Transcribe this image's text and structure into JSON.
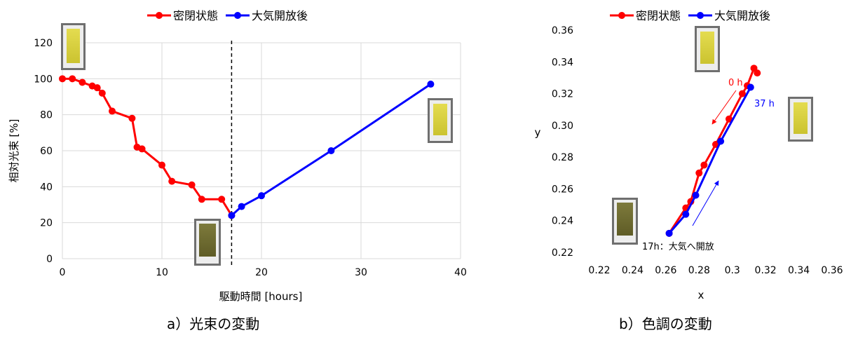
{
  "captions": {
    "a": "a）光束の変動",
    "b": "b）色調の変動"
  },
  "colors": {
    "sealed": "#ff0000",
    "open": "#0000ff"
  },
  "chart_data": [
    {
      "type": "line",
      "xlabel": "駆動時間 [hours]",
      "ylabel": "相対光束 [%]",
      "xlim": [
        0,
        40
      ],
      "ylim": [
        0,
        120
      ],
      "xticks": [
        0,
        10,
        20,
        30,
        40
      ],
      "yticks": [
        0,
        20,
        40,
        60,
        80,
        100,
        120
      ],
      "grid": true,
      "legend": "top-center",
      "series": [
        {
          "name": "密閉状態",
          "color": "#ff0000",
          "x": [
            0,
            1,
            2,
            3,
            3.5,
            4,
            5,
            7,
            7.5,
            8,
            10,
            11,
            13,
            14,
            16,
            17
          ],
          "y": [
            100,
            100,
            98,
            96,
            95,
            92,
            82,
            78,
            62,
            61,
            52,
            43,
            41,
            33,
            33,
            24
          ]
        },
        {
          "name": "大気開放後",
          "color": "#0000ff",
          "x": [
            17,
            18,
            20,
            27,
            37
          ],
          "y": [
            24,
            29,
            35,
            60,
            97
          ]
        }
      ],
      "vline_x": 17
    },
    {
      "type": "line",
      "xlabel": "x",
      "ylabel": "y",
      "xlim": [
        0.22,
        0.36
      ],
      "ylim": [
        0.22,
        0.36
      ],
      "xticks": [
        "0.22",
        "0.24",
        "0.26",
        "0.28",
        "0.3",
        "0.32",
        "0.34",
        "0.36"
      ],
      "yticks": [
        "0.22",
        "0.24",
        "0.26",
        "0.28",
        "0.30",
        "0.32",
        "0.34",
        "0.36"
      ],
      "grid": false,
      "legend": "top-left",
      "series": [
        {
          "name": "密閉状態",
          "color": "#ff0000",
          "x": [
            0.315,
            0.313,
            0.309,
            0.306,
            0.298,
            0.29,
            0.283,
            0.28,
            0.275,
            0.272,
            0.262
          ],
          "y": [
            0.333,
            0.336,
            0.325,
            0.32,
            0.304,
            0.288,
            0.275,
            0.27,
            0.252,
            0.248,
            0.232
          ]
        },
        {
          "name": "大気開放後",
          "color": "#0000ff",
          "x": [
            0.262,
            0.272,
            0.278,
            0.293,
            0.311
          ],
          "y": [
            0.232,
            0.244,
            0.256,
            0.29,
            0.324
          ]
        }
      ],
      "annotations": {
        "start": "0 h",
        "end": "37 h",
        "open": "17h：大気へ開放"
      }
    }
  ]
}
